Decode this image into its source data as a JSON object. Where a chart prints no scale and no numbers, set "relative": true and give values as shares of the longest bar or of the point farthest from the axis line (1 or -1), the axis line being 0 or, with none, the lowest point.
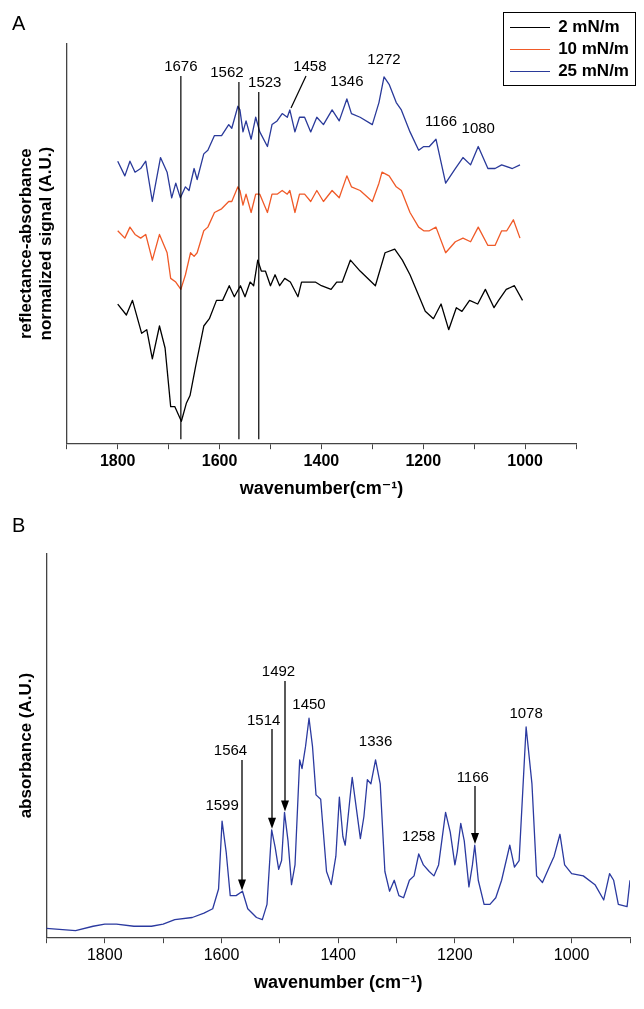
{
  "chart_data": [
    {
      "type": "line",
      "title": "A",
      "xlabel": "wavenumber(cm⁻¹)",
      "ylabel": "reflectance-absorbance\nnormalized signal (A.U.)",
      "relative": true,
      "xlim": [
        1900,
        900
      ],
      "xticks": [
        {
          "value": 1900,
          "label": null
        },
        1800,
        {
          "value": 1700,
          "label": null
        },
        1600,
        {
          "value": 1500,
          "label": null
        },
        1400,
        {
          "value": 1300,
          "label": null
        },
        1200,
        {
          "value": 1100,
          "label": null
        },
        1000,
        {
          "value": 900,
          "label": null
        }
      ],
      "legend": "top right",
      "grid": false,
      "marker": "none",
      "line_style": "solid",
      "ref_lines": [
        {
          "axis": "x",
          "value": 1676,
          "label": "1676",
          "color": "#000000"
        },
        {
          "axis": "x",
          "value": 1562,
          "label": "1562",
          "color": "#000000"
        },
        {
          "axis": "x",
          "value": 1523,
          "label": "1523",
          "color": "#000000"
        }
      ],
      "annotations": [
        {
          "text": "1458",
          "x": 1462,
          "y": 0.91
        },
        {
          "text": "1346",
          "x": 1350,
          "y": 0.94
        },
        {
          "text": "1272",
          "x": 1277,
          "y": 1.0
        },
        {
          "text": "1166",
          "x": 1165,
          "y": 0.83
        },
        {
          "text": "1080",
          "x": 1092,
          "y": 0.81
        }
      ],
      "series": [
        {
          "name": "2 mN/m",
          "color": "#000000",
          "x": [
            1800,
            1783,
            1771,
            1753,
            1743,
            1732,
            1718,
            1707,
            1696,
            1688,
            1675,
            1665,
            1658,
            1647,
            1631,
            1620,
            1606,
            1594,
            1581,
            1571,
            1559,
            1550,
            1540,
            1533,
            1525,
            1518,
            1510,
            1500,
            1491,
            1482,
            1472,
            1461,
            1446,
            1439,
            1423,
            1412,
            1400,
            1381,
            1370,
            1359,
            1343,
            1324,
            1294,
            1275,
            1256,
            1241,
            1226,
            1211,
            1196,
            1180,
            1165,
            1150,
            1135,
            1124,
            1109,
            1093,
            1078,
            1061,
            1052,
            1037,
            1021,
            1005
          ],
          "values": [
            0.38,
            0.35,
            0.39,
            0.3,
            0.31,
            0.23,
            0.32,
            0.26,
            0.1,
            0.1,
            0.06,
            0.11,
            0.13,
            0.21,
            0.32,
            0.34,
            0.39,
            0.39,
            0.43,
            0.4,
            0.43,
            0.4,
            0.44,
            0.43,
            0.5,
            0.47,
            0.47,
            0.43,
            0.46,
            0.43,
            0.45,
            0.44,
            0.4,
            0.44,
            0.44,
            0.44,
            0.43,
            0.42,
            0.44,
            0.44,
            0.5,
            0.47,
            0.43,
            0.52,
            0.53,
            0.5,
            0.46,
            0.41,
            0.36,
            0.34,
            0.38,
            0.31,
            0.37,
            0.36,
            0.39,
            0.38,
            0.42,
            0.37,
            0.39,
            0.42,
            0.43,
            0.39
          ]
        },
        {
          "name": "10 mN/m",
          "color": "#f05a28",
          "x": [
            1800,
            1786,
            1776,
            1766,
            1755,
            1745,
            1732,
            1718,
            1703,
            1696,
            1686,
            1676,
            1667,
            1657,
            1650,
            1644,
            1631,
            1623,
            1610,
            1596,
            1582,
            1576,
            1564,
            1560,
            1554,
            1548,
            1538,
            1529,
            1521,
            1506,
            1497,
            1487,
            1477,
            1467,
            1462,
            1452,
            1443,
            1433,
            1421,
            1409,
            1396,
            1379,
            1365,
            1350,
            1341,
            1324,
            1300,
            1287,
            1281,
            1267,
            1253,
            1243,
            1226,
            1209,
            1199,
            1188,
            1175,
            1156,
            1137,
            1122,
            1107,
            1092,
            1073,
            1059,
            1046,
            1036,
            1023,
            1010
          ],
          "values": [
            0.58,
            0.56,
            0.59,
            0.57,
            0.56,
            0.57,
            0.5,
            0.57,
            0.52,
            0.45,
            0.44,
            0.42,
            0.46,
            0.52,
            0.51,
            0.52,
            0.58,
            0.59,
            0.63,
            0.64,
            0.66,
            0.66,
            0.7,
            0.69,
            0.65,
            0.68,
            0.63,
            0.68,
            0.68,
            0.63,
            0.68,
            0.68,
            0.69,
            0.68,
            0.69,
            0.63,
            0.68,
            0.68,
            0.66,
            0.69,
            0.66,
            0.69,
            0.67,
            0.73,
            0.7,
            0.69,
            0.66,
            0.71,
            0.74,
            0.73,
            0.7,
            0.69,
            0.63,
            0.59,
            0.58,
            0.58,
            0.59,
            0.52,
            0.55,
            0.56,
            0.55,
            0.59,
            0.54,
            0.54,
            0.58,
            0.58,
            0.61,
            0.56
          ]
        },
        {
          "name": "25 mN/m",
          "color": "#2a3a9a",
          "x": [
            1800,
            1786,
            1776,
            1766,
            1755,
            1745,
            1732,
            1716,
            1703,
            1694,
            1686,
            1677,
            1667,
            1660,
            1650,
            1644,
            1631,
            1623,
            1610,
            1596,
            1582,
            1576,
            1564,
            1560,
            1554,
            1548,
            1538,
            1529,
            1521,
            1506,
            1497,
            1487,
            1477,
            1467,
            1462,
            1452,
            1443,
            1433,
            1421,
            1409,
            1396,
            1379,
            1365,
            1350,
            1341,
            1324,
            1300,
            1287,
            1277,
            1267,
            1253,
            1243,
            1226,
            1209,
            1199,
            1188,
            1175,
            1156,
            1137,
            1122,
            1107,
            1092,
            1073,
            1059,
            1046,
            1025,
            1010
          ],
          "values": [
            0.77,
            0.73,
            0.77,
            0.74,
            0.75,
            0.77,
            0.66,
            0.78,
            0.74,
            0.67,
            0.71,
            0.67,
            0.7,
            0.69,
            0.75,
            0.72,
            0.79,
            0.8,
            0.84,
            0.84,
            0.87,
            0.86,
            0.92,
            0.91,
            0.85,
            0.88,
            0.83,
            0.89,
            0.85,
            0.81,
            0.87,
            0.88,
            0.9,
            0.89,
            0.91,
            0.85,
            0.89,
            0.89,
            0.85,
            0.89,
            0.87,
            0.91,
            0.88,
            0.94,
            0.9,
            0.89,
            0.87,
            0.93,
            1.0,
            0.98,
            0.93,
            0.91,
            0.85,
            0.8,
            0.81,
            0.81,
            0.83,
            0.71,
            0.75,
            0.78,
            0.76,
            0.81,
            0.75,
            0.75,
            0.76,
            0.75,
            0.76
          ]
        }
      ]
    },
    {
      "type": "line",
      "title": "B",
      "xlabel": "wavenumber (cm⁻¹)",
      "ylabel": "absorbance (A.U.)",
      "relative": true,
      "xlim": [
        1900,
        900
      ],
      "xticks": [
        {
          "value": 1900,
          "label": null
        },
        1800,
        {
          "value": 1700,
          "label": null
        },
        1600,
        {
          "value": 1500,
          "label": null
        },
        1400,
        {
          "value": 1300,
          "label": null
        },
        1200,
        {
          "value": 1100,
          "label": null
        },
        1000,
        {
          "value": 900,
          "label": null
        }
      ],
      "grid": false,
      "marker": "none",
      "line_style": "solid",
      "annotations": [
        {
          "text": "1599",
          "x": 1599,
          "y": 0.53
        },
        "1564",
        "1514",
        "1492",
        {
          "text": "1450",
          "x": 1450,
          "y": 1.0
        },
        {
          "text": "1336",
          "x": 1336,
          "y": 0.81
        },
        {
          "text": "1258",
          "x": 1262,
          "y": 0.38
        },
        "1166",
        {
          "text": "1078",
          "x": 1078,
          "y": 0.96
        }
      ],
      "series": [
        {
          "color": "#2b3aa0",
          "x": [
            1900,
            1850,
            1820,
            1800,
            1780,
            1750,
            1720,
            1700,
            1680,
            1650,
            1630,
            1615,
            1605,
            1599,
            1592,
            1585,
            1575,
            1564,
            1555,
            1540,
            1530,
            1522,
            1514,
            1508,
            1502,
            1497,
            1492,
            1486,
            1480,
            1474,
            1466,
            1462,
            1456,
            1450,
            1444,
            1438,
            1430,
            1420,
            1412,
            1404,
            1398,
            1392,
            1388,
            1380,
            1376,
            1370,
            1362,
            1356,
            1350,
            1344,
            1336,
            1328,
            1320,
            1312,
            1304,
            1296,
            1288,
            1278,
            1270,
            1262,
            1254,
            1244,
            1236,
            1228,
            1216,
            1208,
            1200,
            1196,
            1190,
            1184,
            1176,
            1170,
            1166,
            1160,
            1150,
            1140,
            1130,
            1120,
            1106,
            1098,
            1090,
            1078,
            1068,
            1060,
            1050,
            1040,
            1030,
            1020,
            1012,
            1000,
            980,
            960,
            945,
            935,
            928,
            920,
            905,
            900
          ],
          "values": [
            0.04,
            0.03,
            0.05,
            0.06,
            0.06,
            0.05,
            0.05,
            0.06,
            0.08,
            0.09,
            0.11,
            0.13,
            0.22,
            0.53,
            0.39,
            0.19,
            0.19,
            0.21,
            0.13,
            0.09,
            0.08,
            0.15,
            0.49,
            0.41,
            0.31,
            0.35,
            0.57,
            0.44,
            0.24,
            0.33,
            0.81,
            0.77,
            0.87,
            1.0,
            0.87,
            0.65,
            0.63,
            0.3,
            0.24,
            0.37,
            0.64,
            0.46,
            0.42,
            0.63,
            0.73,
            0.61,
            0.45,
            0.55,
            0.72,
            0.7,
            0.81,
            0.7,
            0.3,
            0.21,
            0.26,
            0.19,
            0.18,
            0.26,
            0.28,
            0.38,
            0.33,
            0.3,
            0.28,
            0.33,
            0.57,
            0.48,
            0.33,
            0.39,
            0.52,
            0.44,
            0.23,
            0.33,
            0.42,
            0.26,
            0.15,
            0.15,
            0.18,
            0.26,
            0.42,
            0.32,
            0.35,
            0.96,
            0.7,
            0.28,
            0.25,
            0.31,
            0.37,
            0.47,
            0.33,
            0.29,
            0.28,
            0.24,
            0.17,
            0.29,
            0.26,
            0.15,
            0.14,
            0.26
          ]
        }
      ]
    }
  ]
}
